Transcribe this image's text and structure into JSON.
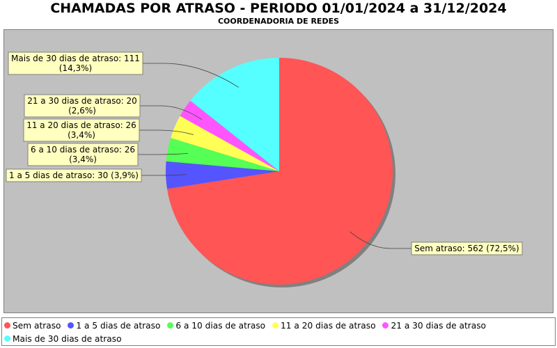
{
  "header": {
    "title": "CHAMADAS POR ATRASO - PERIODO 01/01/2024 a 31/12/2024",
    "subtitle": "COORDENADORIA DE REDES"
  },
  "chart_data": {
    "type": "pie",
    "title": "CHAMADAS POR ATRASO - PERIODO 01/01/2024 a 31/12/2024",
    "subtitle": "COORDENADORIA DE REDES",
    "legend_position": "bottom",
    "slices": [
      {
        "name": "Sem atraso",
        "value": 562,
        "percent": "72,5%",
        "color": "#ff5555",
        "label_lines": [
          "Sem atraso: 562 (72,5%)"
        ]
      },
      {
        "name": "1 a 5 dias de atraso",
        "value": 30,
        "percent": "3,9%",
        "color": "#5555ff",
        "label_lines": [
          "1 a 5 dias de atraso: 30 (3,9%)"
        ]
      },
      {
        "name": "6 a 10 dias de atraso",
        "value": 26,
        "percent": "3,4%",
        "color": "#55ff55",
        "label_lines": [
          "6 a 10 dias de atraso: 26",
          "(3,4%)"
        ]
      },
      {
        "name": "11 a 20 dias de atraso",
        "value": 26,
        "percent": "3,4%",
        "color": "#ffff55",
        "label_lines": [
          "11 a 20 dias de atraso: 26",
          "(3,4%)"
        ]
      },
      {
        "name": "21 a 30 dias de atraso",
        "value": 20,
        "percent": "2,6%",
        "color": "#ff55ff",
        "label_lines": [
          "21 a 30 dias de atraso: 20",
          "(2,6%)"
        ]
      },
      {
        "name": "Mais de 30 dias de atraso",
        "value": 111,
        "percent": "14,3%",
        "color": "#55ffff",
        "label_lines": [
          "Mais de 30 dias de atraso: 111",
          "(14,3%)"
        ]
      }
    ]
  }
}
